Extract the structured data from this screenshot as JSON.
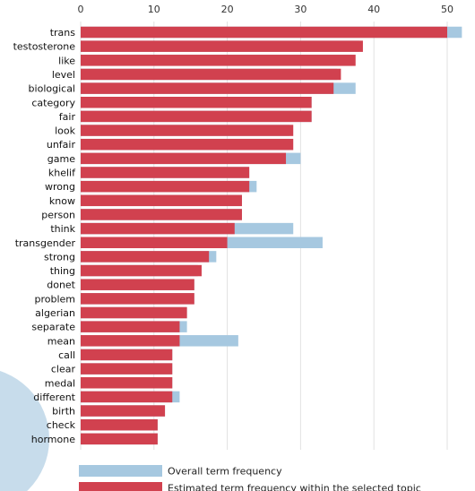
{
  "chart_data": {
    "type": "bar",
    "orientation": "horizontal",
    "xlim": [
      0,
      52
    ],
    "x_ticks": [
      0,
      10,
      20,
      30,
      40,
      50
    ],
    "x_axis_position": "top",
    "grid": true,
    "categories": [
      "trans",
      "testosterone",
      "like",
      "level",
      "biological",
      "category",
      "fair",
      "look",
      "unfair",
      "game",
      "khelif",
      "wrong",
      "know",
      "person",
      "think",
      "transgender",
      "strong",
      "thing",
      "donet",
      "problem",
      "algerian",
      "separate",
      "mean",
      "call",
      "clear",
      "medal",
      "different",
      "birth",
      "check",
      "hormone"
    ],
    "series": [
      {
        "name": "Overall term frequency",
        "color": "#a6c8e0",
        "values": [
          52,
          38,
          37,
          35,
          37.5,
          31.5,
          31.5,
          28.5,
          28.5,
          30,
          23,
          24,
          22,
          22,
          29,
          33,
          18.5,
          16,
          15.5,
          15.5,
          14.5,
          14.5,
          21.5,
          12.5,
          12.5,
          12.5,
          13.5,
          11.5,
          10.5,
          10.5
        ]
      },
      {
        "name": "Estimated term frequency within the selected topic",
        "color": "#d1414f",
        "values": [
          50,
          38.5,
          37.5,
          35.5,
          34.5,
          31.5,
          31.5,
          29,
          29,
          28,
          23,
          23,
          22,
          22,
          21,
          20,
          17.5,
          16.5,
          15.5,
          15.5,
          14.5,
          13.5,
          13.5,
          12.5,
          12.5,
          12.5,
          12.5,
          11.5,
          10.5,
          10.5
        ]
      }
    ],
    "legend": {
      "position": "bottom-left",
      "entries": [
        "Overall term frequency",
        "Estimated term frequency within the selected topic"
      ]
    },
    "decoration": {
      "circle_color": "#c7dceb"
    },
    "colors": {
      "grid": "#e2e2e2",
      "axis_text": "#333333",
      "label_text": "#111111"
    }
  }
}
